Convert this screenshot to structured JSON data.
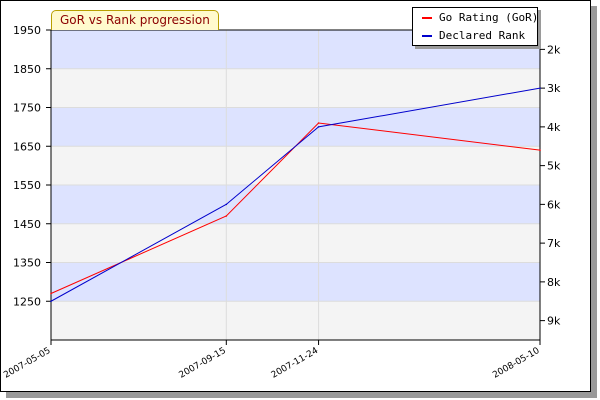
{
  "chart_data": {
    "type": "line",
    "title": "GoR vs Rank progression",
    "x": [
      "2007-05-05",
      "2007-09-15",
      "2007-11-24",
      "2008-05-10"
    ],
    "y_left": {
      "ticks": [
        1250,
        1350,
        1450,
        1550,
        1650,
        1750,
        1850,
        1950
      ],
      "labels": [
        "1250",
        "1350",
        "1450",
        "1550",
        "1650",
        "1750",
        "1850",
        "1950"
      ],
      "ylim": [
        1150,
        1950
      ]
    },
    "y_right": {
      "labels": [
        "2k",
        "3k",
        "4k",
        "5k",
        "6k",
        "7k",
        "8k",
        "9k"
      ],
      "ylim": [
        "9.5k",
        "1.5k"
      ],
      "direction": "inverted"
    },
    "series": [
      {
        "name": "Go Rating (GoR)",
        "axis": "left",
        "color": "#ff0000",
        "values": [
          1270,
          1470,
          1710,
          1640
        ]
      },
      {
        "name": "Declared Rank",
        "axis": "right",
        "color": "#0000cc",
        "values": [
          "8.5k",
          "6k",
          "4k",
          "3k"
        ]
      }
    ],
    "legend": "top-right",
    "grid": true,
    "band_colors": [
      "#dde3ff",
      "#f4f4f4"
    ]
  }
}
